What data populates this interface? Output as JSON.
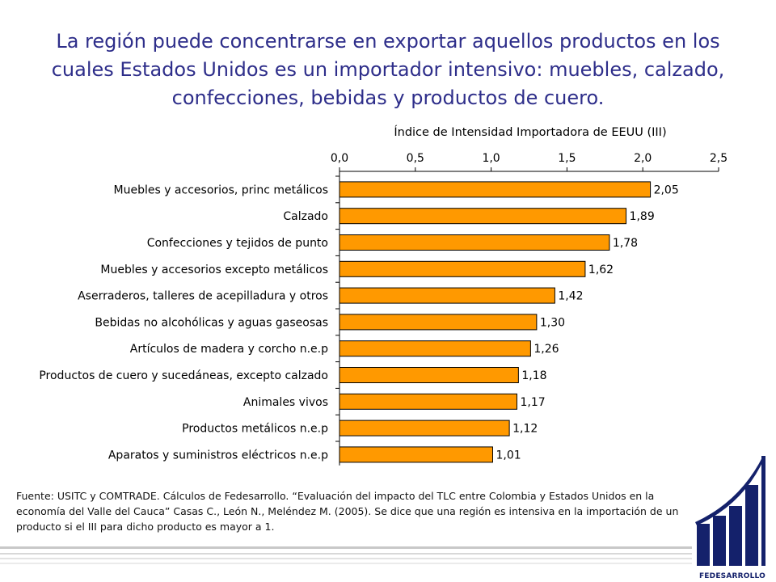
{
  "slide": {
    "title": "La región puede concentrarse en exportar aquellos productos en los cuales Estados Unidos es un importador intensivo: muebles, calzado, confecciones, bebidas y productos de cuero.",
    "source_note": "Fuente: USITC y COMTRADE. Cálculos de Fedesarrollo. “Evaluación del impacto del TLC entre Colombia y Estados Unidos en la economía del Valle del Cauca” Casas C., León N., Meléndez M. (2005). Se dice que una región es intensiva en la importación de un producto si el III para dicho producto es mayor a 1.",
    "logo_text": "FEDESARROLLO"
  },
  "colors": {
    "title": "#2e2e8a",
    "bar_fill": "#ff9900",
    "bar_stroke": "#000000",
    "logo": "#14216b",
    "rule": "#c8c8c8"
  },
  "chart_data": {
    "type": "bar",
    "orientation": "horizontal",
    "title": "Índice de Intensidad Importadora de EEUU (III)",
    "x_axis_position": "top",
    "xlim": [
      0,
      2.5
    ],
    "x_ticks": [
      "0,0",
      "0,5",
      "1,0",
      "1,5",
      "2,0",
      "2,5"
    ],
    "grid": false,
    "categories": [
      "Muebles y accesorios, princ metálicos",
      "Calzado",
      "Confecciones y tejidos de punto",
      "Muebles y accesorios excepto metálicos",
      "Aserraderos, talleres de acepilladura y otros",
      "Bebidas no alcohólicas y aguas gaseosas",
      "Artículos de madera y corcho n.e.p",
      "Productos de cuero y sucedáneas, excepto calzado",
      "Animales vivos",
      "Productos metálicos n.e.p",
      "Aparatos y suministros eléctricos n.e.p"
    ],
    "values": [
      2.05,
      1.89,
      1.78,
      1.62,
      1.42,
      1.3,
      1.26,
      1.18,
      1.17,
      1.12,
      1.01
    ],
    "value_labels": [
      "2,05",
      "1,89",
      "1,78",
      "1,62",
      "1,42",
      "1,30",
      "1,26",
      "1,18",
      "1,17",
      "1,12",
      "1,01"
    ]
  }
}
